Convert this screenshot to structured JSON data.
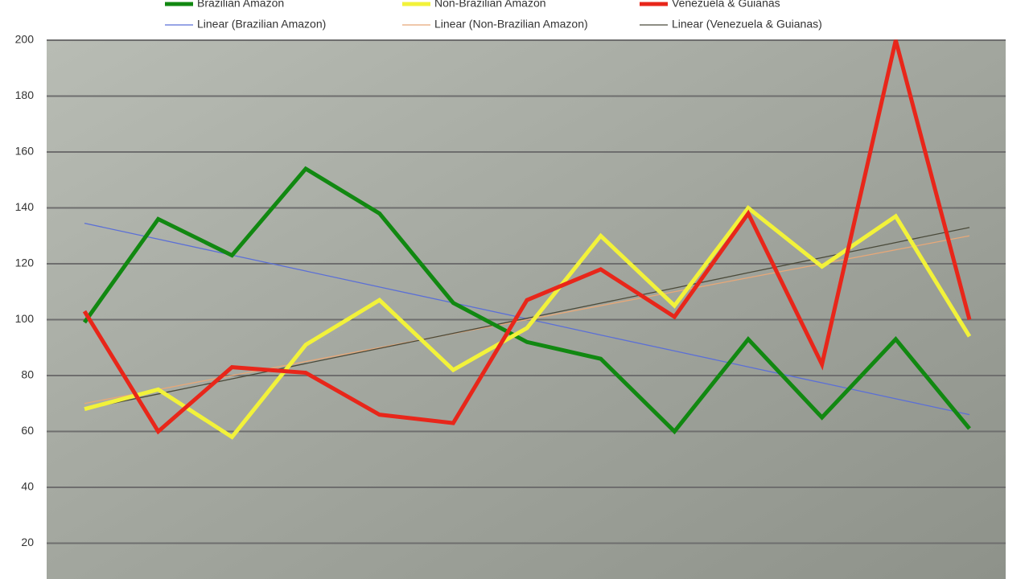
{
  "chart_data": {
    "type": "line",
    "categories": [
      null,
      null,
      null,
      null,
      null,
      null,
      null,
      null,
      null,
      null,
      null,
      null,
      null
    ],
    "ylim": [
      0,
      200
    ],
    "yticks": [
      20,
      40,
      60,
      80,
      100,
      120,
      140,
      160,
      180,
      200
    ],
    "grid": true,
    "series": [
      {
        "name": "Brazilian Amazon",
        "color": "#118811",
        "width": 5,
        "values": [
          99,
          136,
          123,
          154,
          138,
          106,
          92,
          86,
          60,
          93,
          65,
          93,
          61
        ]
      },
      {
        "name": "Non-Brazilian Amazon",
        "color": "#f2f23a",
        "width": 5,
        "values": [
          68,
          75,
          58,
          91,
          107,
          82,
          97,
          130,
          105,
          140,
          119,
          137,
          94
        ]
      },
      {
        "name": "Venezuela & Guianas",
        "color": "#e8261a",
        "width": 5,
        "values": [
          103,
          60,
          83,
          81,
          66,
          63,
          107,
          118,
          101,
          138,
          84,
          200,
          100
        ]
      },
      {
        "name": "Linear (Brazilian Amazon)",
        "color": "#5b6fd6",
        "width": 1.3,
        "values": [
          134.5,
          128.8,
          123.1,
          117.4,
          111.7,
          106,
          100.3,
          94.5,
          88.8,
          83.1,
          77.4,
          71.7,
          66
        ]
      },
      {
        "name": "Linear (Non-Brazilian Amazon)",
        "color": "#e8a878",
        "width": 1.3,
        "values": [
          70,
          75,
          80,
          85,
          90,
          95,
          100,
          105,
          110,
          115,
          120,
          125,
          130
        ]
      },
      {
        "name": "Linear (Venezuela & Guianas)",
        "color": "#4a4a3a",
        "width": 1.3,
        "values": [
          68,
          73.4,
          78.8,
          84.3,
          89.7,
          95.1,
          100.5,
          105.9,
          111.3,
          116.8,
          122.2,
          127.6,
          133
        ]
      }
    ]
  }
}
